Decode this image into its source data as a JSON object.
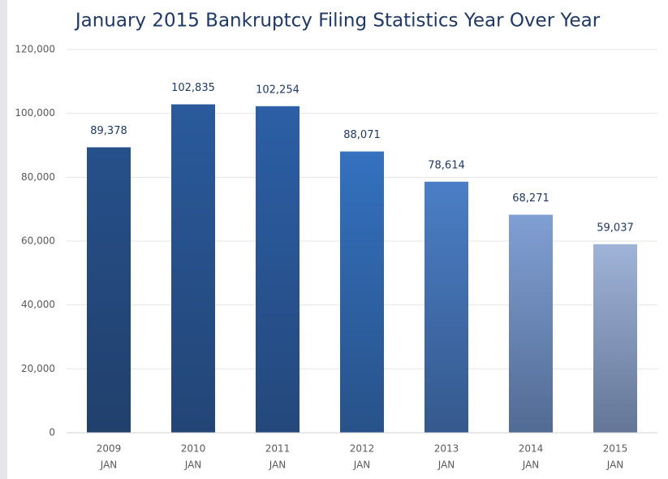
{
  "chart_data": {
    "type": "bar",
    "title": "January 2015 Bankruptcy Filing Statistics Year Over Year",
    "categories": [
      [
        "2009",
        "JAN"
      ],
      [
        "2010",
        "JAN"
      ],
      [
        "2011",
        "JAN"
      ],
      [
        "2012",
        "JAN"
      ],
      [
        "2013",
        "JAN"
      ],
      [
        "2014",
        "JAN"
      ],
      [
        "2015",
        "JAN"
      ]
    ],
    "values": [
      89378,
      102835,
      102254,
      88071,
      78614,
      68271,
      59037
    ],
    "value_labels": [
      "89,378",
      "102,835",
      "102,254",
      "88,071",
      "78,614",
      "68,271",
      "59,037"
    ],
    "colors": [
      "#26508a",
      "#2a5a9c",
      "#2c5fa6",
      "#3471bf",
      "#4b7ec6",
      "#809fd3",
      "#a0b3d8"
    ],
    "ylim": [
      0,
      120000
    ],
    "yticks": [
      0,
      {
        "value": 20000,
        "label": "20,000"
      },
      {
        "value": 40000,
        "label": "40,000"
      },
      {
        "value": 60000,
        "label": "60,000"
      },
      {
        "value": 80000,
        "label": "80,000"
      },
      {
        "value": 100000,
        "label": "100,000"
      },
      {
        "value": 120000,
        "label": "120,000"
      }
    ],
    "grid": true
  }
}
